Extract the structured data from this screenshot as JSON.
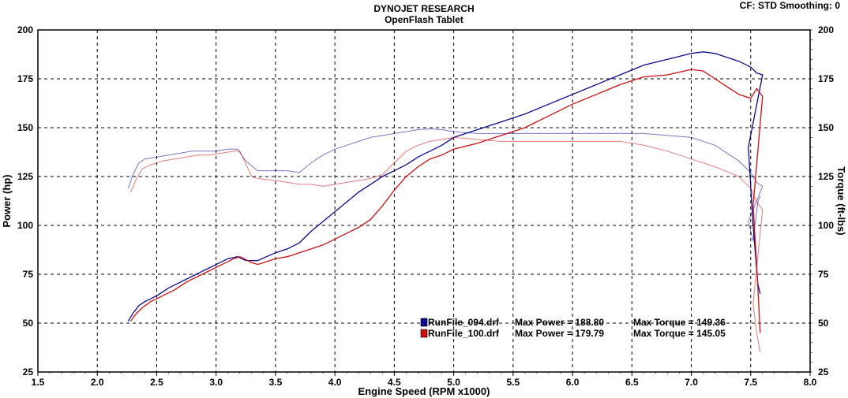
{
  "header": {
    "title": "DYNOJET RESEARCH",
    "subtitle": "OpenFlash Tablet",
    "settings": "CF: STD  Smoothing: 0"
  },
  "chart_data": {
    "type": "line",
    "title": "DYNOJET RESEARCH",
    "subtitle": "OpenFlash Tablet",
    "xlabel": "Engine Speed (RPM x1000)",
    "ylabel": "Power (hp)",
    "y2label": "Torque (ft-lbs)",
    "xlim": [
      1.5,
      8.0
    ],
    "ylim": [
      25,
      200
    ],
    "y2lim": [
      25,
      200
    ],
    "xticks": [
      "1.5",
      "2.0",
      "2.5",
      "3.0",
      "3.5",
      "4.0",
      "4.5",
      "5.0",
      "5.5",
      "6.0",
      "6.5",
      "7.0",
      "7.5",
      "8.0"
    ],
    "yticks": [
      "25",
      "50",
      "75",
      "100",
      "125",
      "150",
      "175",
      "200"
    ],
    "grid": true,
    "legend_position": "bottom-center",
    "series": [
      {
        "name": "RunFile_094.drf",
        "color": "#0a0a8c",
        "legend": [
          "RunFile_094.drf",
          "Max Power = 188.80",
          "Max Torque = 149.36"
        ],
        "power": [
          [
            2.26,
            51
          ],
          [
            2.3,
            55
          ],
          [
            2.35,
            59
          ],
          [
            2.4,
            61
          ],
          [
            2.5,
            64
          ],
          [
            2.6,
            68
          ],
          [
            2.7,
            71
          ],
          [
            2.8,
            74
          ],
          [
            2.9,
            77
          ],
          [
            3.0,
            80
          ],
          [
            3.1,
            83
          ],
          [
            3.18,
            84
          ],
          [
            3.25,
            82
          ],
          [
            3.35,
            82
          ],
          [
            3.5,
            86
          ],
          [
            3.6,
            88
          ],
          [
            3.7,
            91
          ],
          [
            3.8,
            97
          ],
          [
            3.9,
            102
          ],
          [
            4.0,
            107
          ],
          [
            4.1,
            112
          ],
          [
            4.2,
            117
          ],
          [
            4.3,
            121
          ],
          [
            4.4,
            125
          ],
          [
            4.5,
            128
          ],
          [
            4.6,
            131
          ],
          [
            4.7,
            135
          ],
          [
            4.8,
            138
          ],
          [
            4.9,
            141
          ],
          [
            5.0,
            145
          ],
          [
            5.2,
            149
          ],
          [
            5.4,
            153
          ],
          [
            5.6,
            157
          ],
          [
            5.8,
            162
          ],
          [
            6.0,
            167
          ],
          [
            6.2,
            172
          ],
          [
            6.4,
            177
          ],
          [
            6.6,
            182
          ],
          [
            6.8,
            185
          ],
          [
            7.0,
            188
          ],
          [
            7.1,
            188.8
          ],
          [
            7.2,
            188
          ],
          [
            7.3,
            186
          ],
          [
            7.4,
            184
          ],
          [
            7.5,
            181
          ],
          [
            7.55,
            178
          ],
          [
            7.6,
            177
          ],
          [
            7.48,
            140
          ],
          [
            7.52,
            100
          ],
          [
            7.56,
            70
          ],
          [
            7.58,
            65
          ]
        ],
        "torque": [
          [
            2.26,
            119
          ],
          [
            2.3,
            126
          ],
          [
            2.35,
            132
          ],
          [
            2.4,
            134
          ],
          [
            2.5,
            135
          ],
          [
            2.6,
            136
          ],
          [
            2.7,
            137
          ],
          [
            2.8,
            138
          ],
          [
            2.9,
            138
          ],
          [
            3.0,
            138
          ],
          [
            3.1,
            139
          ],
          [
            3.18,
            139
          ],
          [
            3.25,
            133
          ],
          [
            3.35,
            128
          ],
          [
            3.5,
            128
          ],
          [
            3.6,
            128
          ],
          [
            3.7,
            127
          ],
          [
            3.8,
            132
          ],
          [
            3.9,
            136
          ],
          [
            4.0,
            139
          ],
          [
            4.1,
            141
          ],
          [
            4.2,
            143
          ],
          [
            4.3,
            145
          ],
          [
            4.4,
            146
          ],
          [
            4.5,
            147
          ],
          [
            4.6,
            148
          ],
          [
            4.7,
            149
          ],
          [
            4.8,
            149.4
          ],
          [
            4.9,
            149
          ],
          [
            5.0,
            148
          ],
          [
            5.2,
            147
          ],
          [
            5.4,
            147
          ],
          [
            5.6,
            147
          ],
          [
            5.8,
            147
          ],
          [
            6.0,
            147
          ],
          [
            6.2,
            147
          ],
          [
            6.4,
            147
          ],
          [
            6.6,
            147
          ],
          [
            6.8,
            146
          ],
          [
            7.0,
            145
          ],
          [
            7.2,
            141
          ],
          [
            7.4,
            133
          ],
          [
            7.5,
            127
          ],
          [
            7.55,
            122
          ],
          [
            7.6,
            120
          ],
          [
            7.48,
            102
          ],
          [
            7.52,
            92
          ],
          [
            7.56,
            112
          ],
          [
            7.58,
            115
          ]
        ]
      },
      {
        "name": "RunFile_100.drf",
        "color": "#cc1010",
        "legend": [
          "RunFile_100.drf",
          "Max Power = 179.79",
          "Max Torque = 145.05"
        ],
        "power": [
          [
            2.28,
            51
          ],
          [
            2.33,
            55
          ],
          [
            2.38,
            58
          ],
          [
            2.45,
            61
          ],
          [
            2.55,
            64
          ],
          [
            2.65,
            67
          ],
          [
            2.75,
            71
          ],
          [
            2.85,
            74
          ],
          [
            2.95,
            77
          ],
          [
            3.05,
            80
          ],
          [
            3.15,
            83
          ],
          [
            3.2,
            84
          ],
          [
            3.3,
            81
          ],
          [
            3.35,
            80
          ],
          [
            3.5,
            83
          ],
          [
            3.6,
            84
          ],
          [
            3.7,
            86
          ],
          [
            3.8,
            88
          ],
          [
            3.9,
            90
          ],
          [
            4.0,
            93
          ],
          [
            4.1,
            96
          ],
          [
            4.2,
            99
          ],
          [
            4.3,
            103
          ],
          [
            4.4,
            110
          ],
          [
            4.5,
            118
          ],
          [
            4.6,
            125
          ],
          [
            4.7,
            130
          ],
          [
            4.8,
            134
          ],
          [
            4.9,
            136
          ],
          [
            5.0,
            139
          ],
          [
            5.2,
            142
          ],
          [
            5.4,
            146
          ],
          [
            5.6,
            150
          ],
          [
            5.8,
            156
          ],
          [
            6.0,
            162
          ],
          [
            6.2,
            167
          ],
          [
            6.4,
            172
          ],
          [
            6.6,
            176
          ],
          [
            6.8,
            177
          ],
          [
            7.0,
            179.8
          ],
          [
            7.1,
            179
          ],
          [
            7.2,
            175
          ],
          [
            7.3,
            171
          ],
          [
            7.4,
            167
          ],
          [
            7.5,
            165
          ],
          [
            7.55,
            170
          ],
          [
            7.6,
            166
          ],
          [
            7.52,
            110
          ],
          [
            7.55,
            80
          ],
          [
            7.58,
            45
          ]
        ],
        "torque": [
          [
            2.28,
            117
          ],
          [
            2.33,
            124
          ],
          [
            2.38,
            129
          ],
          [
            2.45,
            131
          ],
          [
            2.55,
            133
          ],
          [
            2.65,
            134
          ],
          [
            2.75,
            135
          ],
          [
            2.85,
            136
          ],
          [
            2.95,
            136
          ],
          [
            3.05,
            137
          ],
          [
            3.15,
            138
          ],
          [
            3.2,
            138
          ],
          [
            3.3,
            125
          ],
          [
            3.35,
            124
          ],
          [
            3.5,
            123
          ],
          [
            3.6,
            122
          ],
          [
            3.7,
            121
          ],
          [
            3.8,
            121
          ],
          [
            3.9,
            120
          ],
          [
            4.0,
            121
          ],
          [
            4.1,
            122
          ],
          [
            4.2,
            123
          ],
          [
            4.3,
            124
          ],
          [
            4.4,
            126
          ],
          [
            4.5,
            132
          ],
          [
            4.6,
            138
          ],
          [
            4.7,
            141
          ],
          [
            4.8,
            143
          ],
          [
            4.9,
            144
          ],
          [
            5.0,
            145
          ],
          [
            5.2,
            144
          ],
          [
            5.4,
            143
          ],
          [
            5.6,
            143
          ],
          [
            5.8,
            143
          ],
          [
            6.0,
            143
          ],
          [
            6.2,
            143
          ],
          [
            6.4,
            143
          ],
          [
            6.6,
            141
          ],
          [
            6.8,
            138
          ],
          [
            7.0,
            134
          ],
          [
            7.2,
            130
          ],
          [
            7.4,
            125
          ],
          [
            7.5,
            119
          ],
          [
            7.55,
            112
          ],
          [
            7.6,
            108
          ],
          [
            7.52,
            60
          ],
          [
            7.55,
            45
          ],
          [
            7.58,
            35
          ]
        ]
      }
    ]
  }
}
